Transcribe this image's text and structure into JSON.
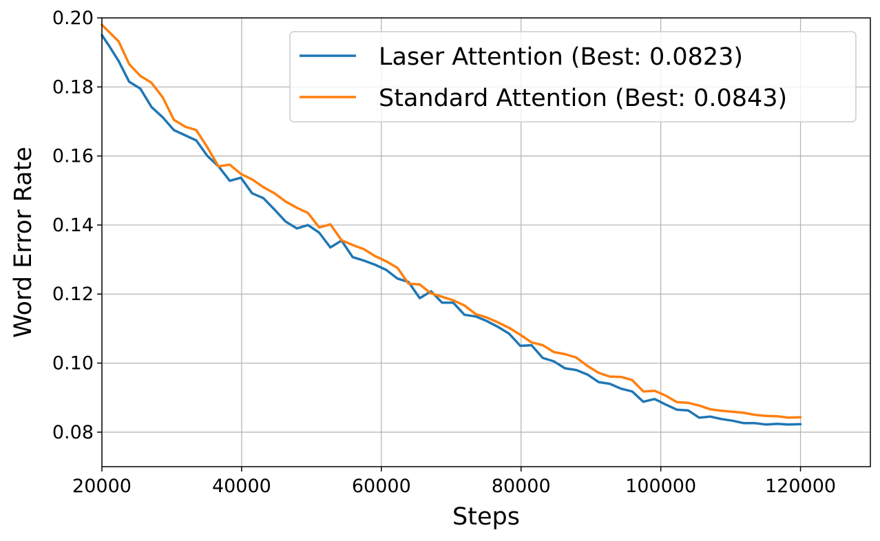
{
  "chart_data": {
    "type": "line",
    "title": "",
    "xlabel": "Steps",
    "ylabel": "Word Error Rate",
    "xlim": [
      20000,
      130000
    ],
    "ylim": [
      0.07,
      0.2
    ],
    "xticks": [
      20000,
      40000,
      60000,
      80000,
      100000,
      120000
    ],
    "xtick_labels": [
      "20000",
      "40000",
      "60000",
      "80000",
      "100000",
      "120000"
    ],
    "yticks": [
      0.08,
      0.1,
      0.12,
      0.14,
      0.16,
      0.18,
      0.2
    ],
    "ytick_labels": [
      "0.08",
      "0.10",
      "0.12",
      "0.14",
      "0.16",
      "0.18",
      "0.20"
    ],
    "grid": true,
    "legend_position": "top-right",
    "series": [
      {
        "name": "Laser Attention (Best: 0.0823)",
        "color": "#1f77b4",
        "x": [
          20000,
          21000,
          22400,
          23900,
          25500,
          27100,
          28700,
          30300,
          31900,
          33500,
          35100,
          36700,
          38300,
          39900,
          41500,
          43100,
          44700,
          46300,
          47900,
          49500,
          51100,
          52700,
          54300,
          55900,
          57500,
          59100,
          60700,
          62300,
          63900,
          65500,
          67100,
          68700,
          70300,
          71900,
          73500,
          75100,
          76700,
          78300,
          79900,
          81500,
          83100,
          84700,
          86300,
          87900,
          89500,
          91100,
          92700,
          94300,
          95900,
          97500,
          99100,
          100700,
          102300,
          103900,
          105500,
          107100,
          108700,
          110300,
          111900,
          113500,
          115100,
          116700,
          118300,
          120000
        ],
        "y": [
          0.195,
          0.192,
          0.1875,
          0.1815,
          0.1795,
          0.1742,
          0.1712,
          0.1675,
          0.166,
          0.1645,
          0.16,
          0.157,
          0.1528,
          0.1537,
          0.1492,
          0.1478,
          0.1445,
          0.141,
          0.139,
          0.14,
          0.1378,
          0.1335,
          0.1355,
          0.1307,
          0.1297,
          0.1285,
          0.127,
          0.1245,
          0.1235,
          0.1188,
          0.1208,
          0.1175,
          0.1175,
          0.114,
          0.1135,
          0.1122,
          0.1105,
          0.1085,
          0.105,
          0.1052,
          0.1015,
          0.1005,
          0.0985,
          0.098,
          0.0967,
          0.0945,
          0.094,
          0.0926,
          0.0918,
          0.0888,
          0.0896,
          0.088,
          0.0865,
          0.0863,
          0.0842,
          0.0845,
          0.0838,
          0.0833,
          0.0826,
          0.0826,
          0.0822,
          0.0824,
          0.0822,
          0.0823
        ]
      },
      {
        "name": "Standard Attention (Best: 0.0843)",
        "color": "#ff7f0e",
        "x": [
          20000,
          21000,
          22400,
          23900,
          25500,
          27100,
          28700,
          30300,
          31900,
          33500,
          35100,
          36700,
          38300,
          39900,
          41500,
          43100,
          44700,
          46300,
          47900,
          49500,
          51100,
          52700,
          54300,
          55900,
          57500,
          59100,
          60700,
          62300,
          63900,
          65500,
          67100,
          68700,
          70300,
          71900,
          73500,
          75100,
          76700,
          78300,
          79900,
          81500,
          83100,
          84700,
          86300,
          87900,
          89500,
          91100,
          92700,
          94300,
          95900,
          97500,
          99100,
          100700,
          102300,
          103900,
          105500,
          107100,
          108700,
          110300,
          111900,
          113500,
          115100,
          116700,
          118300,
          120000
        ],
        "y": [
          0.198,
          0.196,
          0.1932,
          0.1866,
          0.1832,
          0.1812,
          0.177,
          0.1705,
          0.1685,
          0.1675,
          0.1625,
          0.157,
          0.1575,
          0.1548,
          0.1532,
          0.151,
          0.1492,
          0.1468,
          0.145,
          0.1435,
          0.1393,
          0.1402,
          0.1356,
          0.1342,
          0.133,
          0.131,
          0.1295,
          0.1276,
          0.123,
          0.1228,
          0.1202,
          0.1192,
          0.1182,
          0.1167,
          0.1142,
          0.1132,
          0.1118,
          0.1102,
          0.1082,
          0.106,
          0.1052,
          0.1032,
          0.1026,
          0.1016,
          0.0992,
          0.0972,
          0.0961,
          0.096,
          0.0951,
          0.0918,
          0.092,
          0.0906,
          0.0887,
          0.0885,
          0.0877,
          0.0866,
          0.0862,
          0.0859,
          0.0856,
          0.085,
          0.0847,
          0.0846,
          0.0842,
          0.0843
        ]
      }
    ]
  }
}
